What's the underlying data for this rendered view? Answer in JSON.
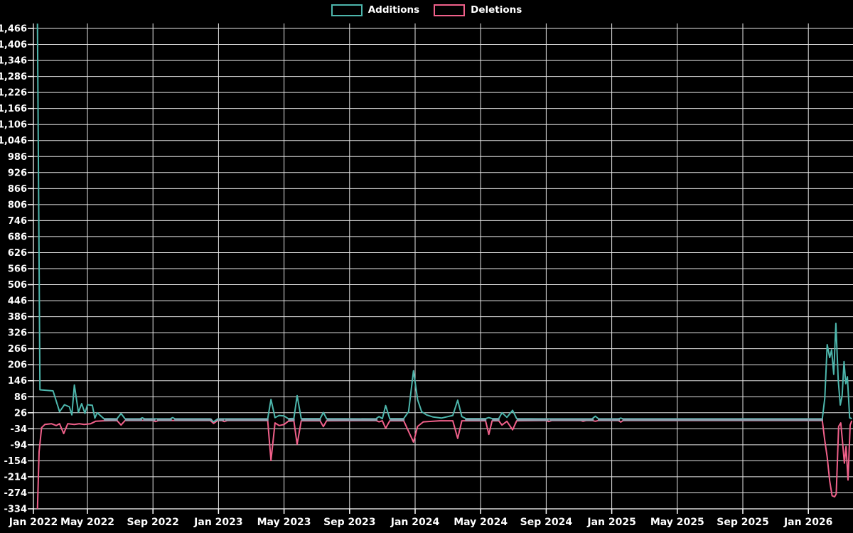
{
  "page": {
    "background": "#000000"
  },
  "legend": {
    "items": [
      {
        "label": "Additions",
        "color": "#4db6ac"
      },
      {
        "label": "Deletions",
        "color": "#f0608a"
      }
    ]
  },
  "chart_data": {
    "type": "line",
    "title": "",
    "xlabel": "",
    "ylabel": "",
    "grid": true,
    "legend_position": "top-center",
    "background": "#000000",
    "grid_color": "#e6e6e6",
    "axis_color": "#ffffff",
    "text_color": "#ffffff",
    "overlap_line_color": "#8ca4b2",
    "ylim": [
      -334,
      1466
    ],
    "y_tick_step": 60,
    "y_ticks": [
      {
        "value": -334,
        "label": "-334"
      },
      {
        "value": -274,
        "label": "-274"
      },
      {
        "value": -214,
        "label": "-214"
      },
      {
        "value": -154,
        "label": "-154"
      },
      {
        "value": -94,
        "label": "-94"
      },
      {
        "value": -34,
        "label": "-34"
      },
      {
        "value": 26,
        "label": "26"
      },
      {
        "value": 86,
        "label": "86"
      },
      {
        "value": 146,
        "label": "146"
      },
      {
        "value": 206,
        "label": "206"
      },
      {
        "value": 266,
        "label": "266"
      },
      {
        "value": 326,
        "label": "326"
      },
      {
        "value": 386,
        "label": "386"
      },
      {
        "value": 446,
        "label": "446"
      },
      {
        "value": 506,
        "label": "506"
      },
      {
        "value": 566,
        "label": "566"
      },
      {
        "value": 626,
        "label": "626"
      },
      {
        "value": 686,
        "label": "686"
      },
      {
        "value": 746,
        "label": "746"
      },
      {
        "value": 806,
        "label": "806"
      },
      {
        "value": 866,
        "label": "866"
      },
      {
        "value": 926,
        "label": "926"
      },
      {
        "value": 986,
        "label": "986"
      },
      {
        "value": 1046,
        "label": "1,046"
      },
      {
        "value": 1106,
        "label": "1,106"
      },
      {
        "value": 1166,
        "label": "1,166"
      },
      {
        "value": 1226,
        "label": "1,226"
      },
      {
        "value": 1286,
        "label": "1,286"
      },
      {
        "value": 1346,
        "label": "1,346"
      },
      {
        "value": 1406,
        "label": "1,406"
      },
      {
        "value": 1466,
        "label": "1,466"
      }
    ],
    "x_unit": "months since Jan 2022",
    "x_ticks": [
      {
        "m": 0,
        "label": "Jan 2022"
      },
      {
        "m": 4,
        "label": "May 2022"
      },
      {
        "m": 8,
        "label": "Sep 2022"
      },
      {
        "m": 12,
        "label": "Jan 2023"
      },
      {
        "m": 16,
        "label": "May 2023"
      },
      {
        "m": 20,
        "label": "Sep 2023"
      },
      {
        "m": 24,
        "label": "Jan 2024"
      },
      {
        "m": 28,
        "label": "May 2024"
      },
      {
        "m": 32,
        "label": "Sep 2024"
      },
      {
        "m": 36,
        "label": "Jan 2025"
      },
      {
        "m": 40,
        "label": "May 2025"
      },
      {
        "m": 44,
        "label": "Sep 2025"
      },
      {
        "m": 48,
        "label": "Jan 2026"
      }
    ],
    "series": [
      {
        "name": "Additions",
        "color": "#4db6ac",
        "points": [
          [
            0.95,
            1484
          ],
          [
            1.1,
            112
          ],
          [
            1.9,
            108
          ],
          [
            2.3,
            30
          ],
          [
            2.6,
            56
          ],
          [
            2.9,
            48
          ],
          [
            3.05,
            18
          ],
          [
            3.2,
            130
          ],
          [
            3.45,
            28
          ],
          [
            3.65,
            60
          ],
          [
            3.85,
            24
          ],
          [
            4.0,
            56
          ],
          [
            4.3,
            54
          ],
          [
            4.45,
            6
          ],
          [
            4.6,
            26
          ],
          [
            5.0,
            4
          ],
          [
            5.8,
            3
          ],
          [
            6.05,
            23
          ],
          [
            6.3,
            3
          ],
          [
            7.2,
            3
          ],
          [
            7.35,
            7
          ],
          [
            7.5,
            3
          ],
          [
            9.05,
            3
          ],
          [
            9.2,
            8
          ],
          [
            9.35,
            3
          ],
          [
            11.5,
            3
          ],
          [
            11.7,
            -8
          ],
          [
            11.95,
            3
          ],
          [
            15.0,
            3
          ],
          [
            15.2,
            76
          ],
          [
            15.45,
            8
          ],
          [
            15.7,
            16
          ],
          [
            16.0,
            14
          ],
          [
            16.25,
            4
          ],
          [
            16.6,
            5
          ],
          [
            16.8,
            90
          ],
          [
            17.05,
            4
          ],
          [
            18.2,
            4
          ],
          [
            18.4,
            27
          ],
          [
            18.6,
            4
          ],
          [
            21.6,
            3
          ],
          [
            21.8,
            12
          ],
          [
            22.0,
            4
          ],
          [
            22.2,
            53
          ],
          [
            22.45,
            4
          ],
          [
            23.3,
            4
          ],
          [
            23.6,
            30
          ],
          [
            23.9,
            183
          ],
          [
            24.15,
            75
          ],
          [
            24.4,
            30
          ],
          [
            24.7,
            18
          ],
          [
            25.1,
            10
          ],
          [
            25.6,
            6
          ],
          [
            26.3,
            16
          ],
          [
            26.6,
            73
          ],
          [
            26.85,
            12
          ],
          [
            27.1,
            4
          ],
          [
            28.3,
            4
          ],
          [
            28.5,
            8
          ],
          [
            28.7,
            4
          ],
          [
            29.1,
            4
          ],
          [
            29.3,
            26
          ],
          [
            29.6,
            9
          ],
          [
            29.95,
            35
          ],
          [
            30.2,
            4
          ],
          [
            32.0,
            3
          ],
          [
            34.8,
            3
          ],
          [
            35.0,
            13
          ],
          [
            35.2,
            3
          ],
          [
            36.4,
            3
          ],
          [
            36.55,
            6
          ],
          [
            36.7,
            3
          ],
          [
            48.85,
            3
          ],
          [
            49.0,
            80
          ],
          [
            49.15,
            281
          ],
          [
            49.3,
            233
          ],
          [
            49.42,
            262
          ],
          [
            49.55,
            170
          ],
          [
            49.68,
            361
          ],
          [
            49.82,
            150
          ],
          [
            49.95,
            55
          ],
          [
            50.06,
            90
          ],
          [
            50.18,
            218
          ],
          [
            50.28,
            135
          ],
          [
            50.38,
            161
          ],
          [
            50.52,
            7
          ],
          [
            50.65,
            4
          ]
        ]
      },
      {
        "name": "Deletions",
        "color": "#f0608a",
        "points": [
          [
            0.95,
            -334
          ],
          [
            1.05,
            -120
          ],
          [
            1.2,
            -30
          ],
          [
            1.4,
            -18
          ],
          [
            1.8,
            -15
          ],
          [
            2.1,
            -22
          ],
          [
            2.3,
            -15
          ],
          [
            2.55,
            -52
          ],
          [
            2.8,
            -15
          ],
          [
            3.2,
            -18
          ],
          [
            3.5,
            -15
          ],
          [
            3.8,
            -18
          ],
          [
            4.2,
            -15
          ],
          [
            4.5,
            -6
          ],
          [
            5.0,
            -4
          ],
          [
            5.8,
            -3
          ],
          [
            6.05,
            -20
          ],
          [
            6.3,
            -3
          ],
          [
            8.0,
            -3
          ],
          [
            8.15,
            -7
          ],
          [
            8.35,
            -3
          ],
          [
            11.5,
            -3
          ],
          [
            11.7,
            -14
          ],
          [
            11.95,
            -3
          ],
          [
            12.2,
            -3
          ],
          [
            12.35,
            -7
          ],
          [
            12.55,
            -3
          ],
          [
            15.0,
            -3
          ],
          [
            15.2,
            -153
          ],
          [
            15.45,
            -12
          ],
          [
            15.7,
            -22
          ],
          [
            16.0,
            -18
          ],
          [
            16.25,
            -6
          ],
          [
            16.6,
            -4
          ],
          [
            16.8,
            -92
          ],
          [
            17.05,
            -4
          ],
          [
            18.2,
            -4
          ],
          [
            18.4,
            -26
          ],
          [
            18.6,
            -4
          ],
          [
            21.6,
            -3
          ],
          [
            21.8,
            -8
          ],
          [
            22.0,
            -4
          ],
          [
            22.2,
            -32
          ],
          [
            22.45,
            -4
          ],
          [
            23.3,
            -4
          ],
          [
            23.9,
            -84
          ],
          [
            24.15,
            -25
          ],
          [
            24.5,
            -8
          ],
          [
            25.5,
            -4
          ],
          [
            26.3,
            -4
          ],
          [
            26.6,
            -70
          ],
          [
            26.85,
            -4
          ],
          [
            28.3,
            -4
          ],
          [
            28.5,
            -55
          ],
          [
            28.7,
            -4
          ],
          [
            29.1,
            -4
          ],
          [
            29.3,
            -20
          ],
          [
            29.6,
            -6
          ],
          [
            29.95,
            -38
          ],
          [
            30.2,
            -4
          ],
          [
            32.0,
            -3
          ],
          [
            32.15,
            -7
          ],
          [
            32.35,
            -3
          ],
          [
            34.1,
            -3
          ],
          [
            34.25,
            -6
          ],
          [
            34.45,
            -3
          ],
          [
            34.8,
            -3
          ],
          [
            35.0,
            -6
          ],
          [
            35.2,
            -3
          ],
          [
            36.4,
            -3
          ],
          [
            36.55,
            -9
          ],
          [
            36.7,
            -3
          ],
          [
            48.85,
            -3
          ],
          [
            49.0,
            -78
          ],
          [
            49.15,
            -140
          ],
          [
            49.3,
            -229
          ],
          [
            49.45,
            -285
          ],
          [
            49.6,
            -289
          ],
          [
            49.7,
            -278
          ],
          [
            49.85,
            -25
          ],
          [
            49.98,
            -12
          ],
          [
            50.1,
            -93
          ],
          [
            50.2,
            -163
          ],
          [
            50.3,
            -100
          ],
          [
            50.42,
            -226
          ],
          [
            50.55,
            -20
          ],
          [
            50.65,
            -4
          ]
        ]
      }
    ]
  }
}
